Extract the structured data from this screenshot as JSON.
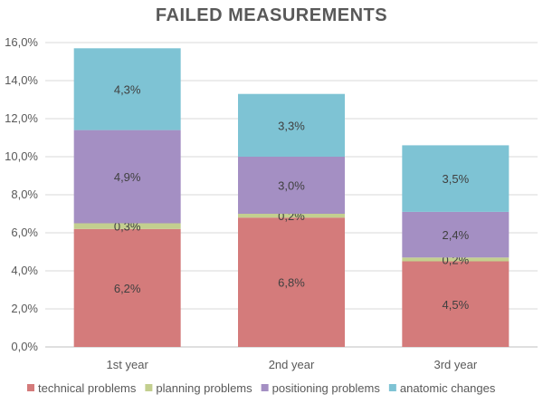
{
  "chart_data": {
    "type": "bar",
    "stacked": true,
    "title": "FAILED MEASUREMENTS",
    "categories": [
      "1st year",
      "2nd year",
      "3rd year"
    ],
    "series": [
      {
        "name": "technical problems",
        "color": "#d47b7b",
        "values": [
          6.2,
          6.8,
          4.5
        ],
        "labels": [
          "6,2%",
          "6,8%",
          "4,5%"
        ]
      },
      {
        "name": "planning problems",
        "color": "#c3cf8f",
        "values": [
          0.3,
          0.2,
          0.2
        ],
        "labels": [
          "0,3%",
          "0,2%",
          "0,2%"
        ]
      },
      {
        "name": "positioning problems",
        "color": "#a48fc3",
        "values": [
          4.9,
          3.0,
          2.4
        ],
        "labels": [
          "4,9%",
          "3,0%",
          "2,4%"
        ]
      },
      {
        "name": "anatomic changes",
        "color": "#7ec3d4",
        "values": [
          4.3,
          3.3,
          3.5
        ],
        "labels": [
          "4,3%",
          "3,3%",
          "3,5%"
        ]
      }
    ],
    "ylim": [
      0,
      16
    ],
    "yticks": [
      0,
      2,
      4,
      6,
      8,
      10,
      12,
      14,
      16
    ],
    "ytick_labels": [
      "0,0%",
      "2,0%",
      "4,0%",
      "6,0%",
      "8,0%",
      "10,0%",
      "12,0%",
      "14,0%",
      "16,0%"
    ],
    "grid": true,
    "legend_position": "bottom"
  }
}
